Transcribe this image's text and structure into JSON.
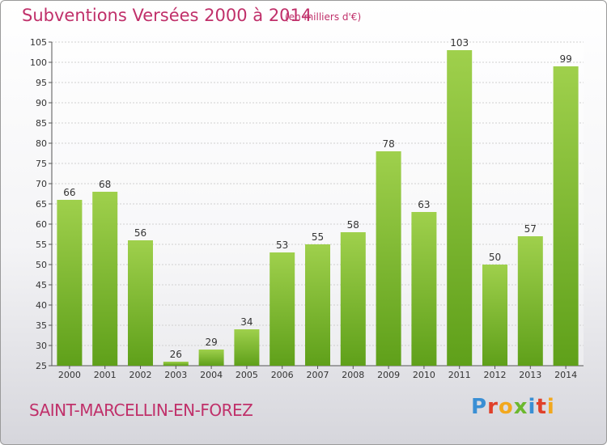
{
  "header": {
    "title": "Subventions Versées 2000 à 2014",
    "subtitle": "(en milliers d'€)"
  },
  "footer": {
    "commune": "SAINT-MARCELLIN-EN-FOREZ",
    "logo_text": "Proxiti"
  },
  "colors": {
    "title": "#c0306a",
    "bar_light": "#9fd04c",
    "bar_dark": "#5fa01a",
    "logo_letters": [
      "#3a8fd4",
      "#e0402a",
      "#f2a81e",
      "#6cb82e",
      "#3a8fd4",
      "#e0402a",
      "#f2a81e"
    ]
  },
  "chart_data": {
    "type": "bar",
    "categories": [
      "2000",
      "2001",
      "2002",
      "2003",
      "2004",
      "2005",
      "2006",
      "2007",
      "2008",
      "2009",
      "2010",
      "2011",
      "2012",
      "2013",
      "2014"
    ],
    "values": [
      66,
      68,
      56,
      26,
      29,
      34,
      53,
      55,
      58,
      78,
      63,
      103,
      50,
      57,
      99
    ],
    "title": "Subventions Versées 2000 à 2014",
    "ylabel": "",
    "xlabel": "",
    "ylim": [
      25,
      105
    ],
    "yticks": [
      25,
      30,
      35,
      40,
      45,
      50,
      55,
      60,
      65,
      70,
      75,
      80,
      85,
      90,
      95,
      100,
      105
    ],
    "grid": true
  }
}
